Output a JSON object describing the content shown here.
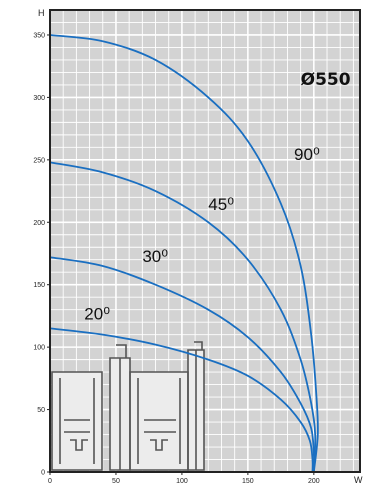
{
  "chart_data": {
    "type": "line",
    "title": "Ø550",
    "xlabel": "W",
    "ylabel": "H",
    "xlim": [
      0,
      235
    ],
    "ylim": [
      0,
      370
    ],
    "grid": true,
    "x_ticks": [
      {
        "value": 0,
        "label": "0"
      },
      {
        "value": 50,
        "label": "50"
      },
      {
        "value": 100,
        "label": "100"
      },
      {
        "value": 150,
        "label": "150"
      },
      {
        "value": 200,
        "label": "200"
      }
    ],
    "y_ticks": [
      {
        "value": 0,
        "label": "0"
      },
      {
        "value": 50,
        "label": "50"
      },
      {
        "value": 100,
        "label": "100"
      },
      {
        "value": 150,
        "label": "150"
      },
      {
        "value": 200,
        "label": "200"
      },
      {
        "value": 250,
        "label": "250"
      },
      {
        "value": 300,
        "label": "300"
      },
      {
        "value": 350,
        "label": "350"
      }
    ],
    "series": [
      {
        "name": "90⁰",
        "label_at": [
          185,
          250
        ],
        "points": [
          [
            0,
            350
          ],
          [
            40,
            345
          ],
          [
            80,
            330
          ],
          [
            120,
            300
          ],
          [
            150,
            265
          ],
          [
            175,
            215
          ],
          [
            190,
            165
          ],
          [
            198,
            110
          ],
          [
            202,
            60
          ],
          [
            203,
            30
          ],
          [
            200,
            0
          ]
        ]
      },
      {
        "name": "45⁰",
        "label_at": [
          120,
          210
        ],
        "points": [
          [
            0,
            248
          ],
          [
            40,
            240
          ],
          [
            80,
            225
          ],
          [
            120,
            200
          ],
          [
            150,
            170
          ],
          [
            175,
            130
          ],
          [
            190,
            90
          ],
          [
            198,
            55
          ],
          [
            201,
            30
          ],
          [
            200,
            0
          ]
        ]
      },
      {
        "name": "30⁰",
        "label_at": [
          70,
          168
        ],
        "points": [
          [
            0,
            172
          ],
          [
            40,
            165
          ],
          [
            80,
            150
          ],
          [
            120,
            130
          ],
          [
            150,
            108
          ],
          [
            175,
            80
          ],
          [
            190,
            55
          ],
          [
            198,
            35
          ],
          [
            200,
            15
          ],
          [
            200,
            0
          ]
        ]
      },
      {
        "name": "20⁰",
        "label_at": [
          26,
          122
        ],
        "points": [
          [
            0,
            115
          ],
          [
            40,
            110
          ],
          [
            80,
            102
          ],
          [
            120,
            90
          ],
          [
            150,
            77
          ],
          [
            175,
            58
          ],
          [
            190,
            40
          ],
          [
            197,
            25
          ],
          [
            199,
            10
          ],
          [
            199,
            0
          ]
        ]
      }
    ]
  },
  "colors": {
    "curve": "#1a6fc1",
    "grid": "#ffffff",
    "plot_background": "#d3d3d3",
    "profile": "#555555"
  },
  "title_at": [
    190,
    310
  ]
}
